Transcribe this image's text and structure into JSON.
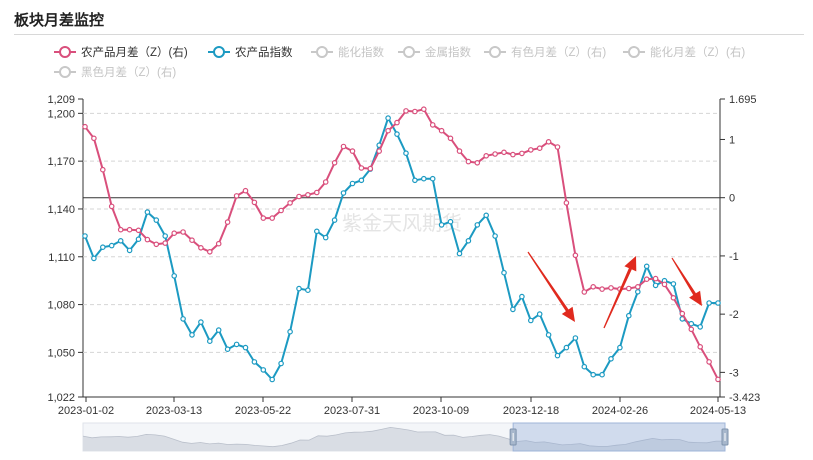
{
  "panel": {
    "title": "板块月差监控"
  },
  "legend": [
    {
      "name": "农产品月差（Z）(右)",
      "color": "#d94f7c",
      "active": true
    },
    {
      "name": "农产品指数",
      "color": "#1c9ac2",
      "active": true
    },
    {
      "name": "能化指数",
      "color": "#c8c8c8",
      "active": false
    },
    {
      "name": "金属指数",
      "color": "#c8c8c8",
      "active": false
    },
    {
      "name": "有色月差（Z）(右)",
      "color": "#c8c8c8",
      "active": false
    },
    {
      "name": "能化月差（Z）(右)",
      "color": "#c8c8c8",
      "active": false
    },
    {
      "name": "黑色月差（Z）(右)",
      "color": "#c8c8c8",
      "active": false
    }
  ],
  "watermark": "紫金天风期货",
  "chart_data": {
    "type": "line",
    "x_tick_labels": [
      "2023-01-02",
      "2023-03-13",
      "2023-05-22",
      "2023-07-31",
      "2023-10-09",
      "2023-12-18",
      "2024-02-26",
      "2024-05-13"
    ],
    "y_left": {
      "ticks": [
        "1,209",
        "1,200",
        "1,170",
        "1,140",
        "1,110",
        "1,080",
        "1,050",
        "1,022"
      ],
      "min": 1022,
      "max": 1209
    },
    "y_right": {
      "ticks": [
        "1.695",
        "1",
        "0",
        "-1",
        "-2",
        "-3",
        "-3.423"
      ],
      "min": -3.423,
      "max": 1.695
    },
    "series": [
      {
        "name": "农产品指数",
        "axis": "left",
        "color": "#1c9ac2",
        "values": [
          1123,
          1109,
          1116,
          1117,
          1120,
          1114,
          1121,
          1138,
          1133,
          1123,
          1098,
          1071,
          1061,
          1069,
          1057,
          1064,
          1052,
          1055,
          1053,
          1044,
          1039,
          1033,
          1043,
          1063,
          1090,
          1089,
          1126,
          1122,
          1133,
          1150,
          1156,
          1158,
          1165,
          1180,
          1197,
          1187,
          1175,
          1158,
          1159,
          1159,
          1130,
          1132,
          1112,
          1120,
          1130,
          1136,
          1123,
          1100,
          1077,
          1085,
          1070,
          1074,
          1061,
          1048,
          1053,
          1059,
          1041,
          1036,
          1036,
          1046,
          1053,
          1073,
          1088,
          1104,
          1092,
          1095,
          1093,
          1071,
          1068,
          1066,
          1081,
          1081
        ]
      },
      {
        "name": "农产品月差（Z）(右)",
        "axis": "right",
        "color": "#d94f7c",
        "values": [
          1.22,
          1.02,
          0.48,
          -0.15,
          -0.55,
          -0.55,
          -0.56,
          -0.72,
          -0.8,
          -0.78,
          -0.61,
          -0.59,
          -0.73,
          -0.86,
          -0.93,
          -0.79,
          -0.42,
          0.03,
          0.12,
          -0.08,
          -0.35,
          -0.35,
          -0.22,
          -0.09,
          0.02,
          0.05,
          0.09,
          0.27,
          0.6,
          0.88,
          0.8,
          0.51,
          0.5,
          0.8,
          1.15,
          1.29,
          1.49,
          1.48,
          1.52,
          1.25,
          1.15,
          1.02,
          0.8,
          0.62,
          0.6,
          0.72,
          0.75,
          0.78,
          0.74,
          0.76,
          0.82,
          0.85,
          0.96,
          0.87,
          -0.09,
          -0.99,
          -1.62,
          -1.53,
          -1.57,
          -1.55,
          -1.57,
          -1.56,
          -1.53,
          -1.4,
          -1.39,
          -1.49,
          -1.72,
          -1.99,
          -2.26,
          -2.56,
          -2.82,
          -3.12
        ]
      }
    ],
    "annotations": [
      {
        "type": "arrow",
        "direction": "down-right",
        "color": "#e02a1e"
      },
      {
        "type": "arrow",
        "direction": "up-right",
        "color": "#e02a1e"
      },
      {
        "type": "arrow",
        "direction": "down-right",
        "color": "#e02a1e"
      }
    ],
    "zoom": {
      "start_fraction": 0.67,
      "end_fraction": 1.0
    }
  }
}
